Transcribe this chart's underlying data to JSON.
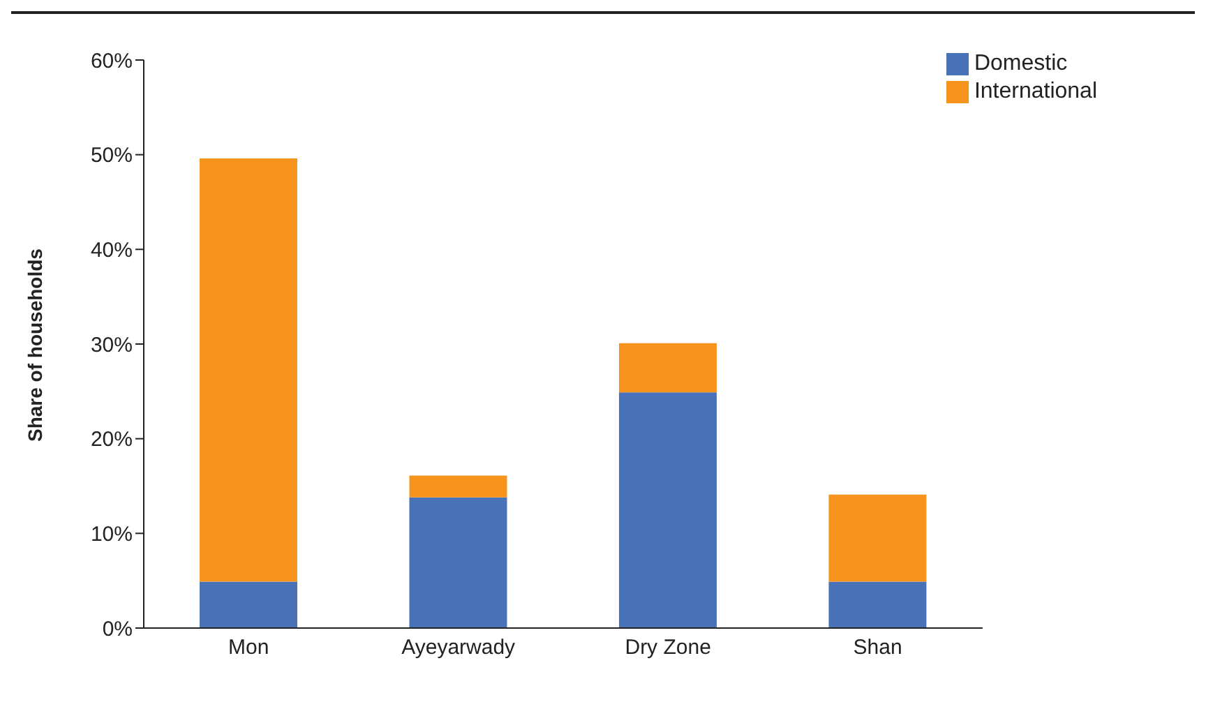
{
  "chart_data": {
    "type": "bar",
    "stacked": true,
    "ylabel": "Share of households",
    "categories": [
      "Mon",
      "Ayeyarwady",
      "Dry Zone",
      "Shan"
    ],
    "series": [
      {
        "name": "Domestic",
        "color": "#4a72b8",
        "values": [
          4.9,
          13.8,
          24.9,
          4.9
        ]
      },
      {
        "name": "International",
        "color": "#f7941d",
        "values": [
          44.7,
          2.3,
          5.2,
          9.2
        ]
      }
    ],
    "ylim": [
      0,
      60
    ],
    "yticks": [
      {
        "value": 0,
        "label": "0%"
      },
      {
        "value": 10,
        "label": "10%"
      },
      {
        "value": 20,
        "label": "20%"
      },
      {
        "value": 30,
        "label": "30%"
      },
      {
        "value": 40,
        "label": "40%"
      },
      {
        "value": 50,
        "label": "50%"
      },
      {
        "value": 60,
        "label": "60%"
      }
    ],
    "grid": false,
    "legend": "top right"
  }
}
